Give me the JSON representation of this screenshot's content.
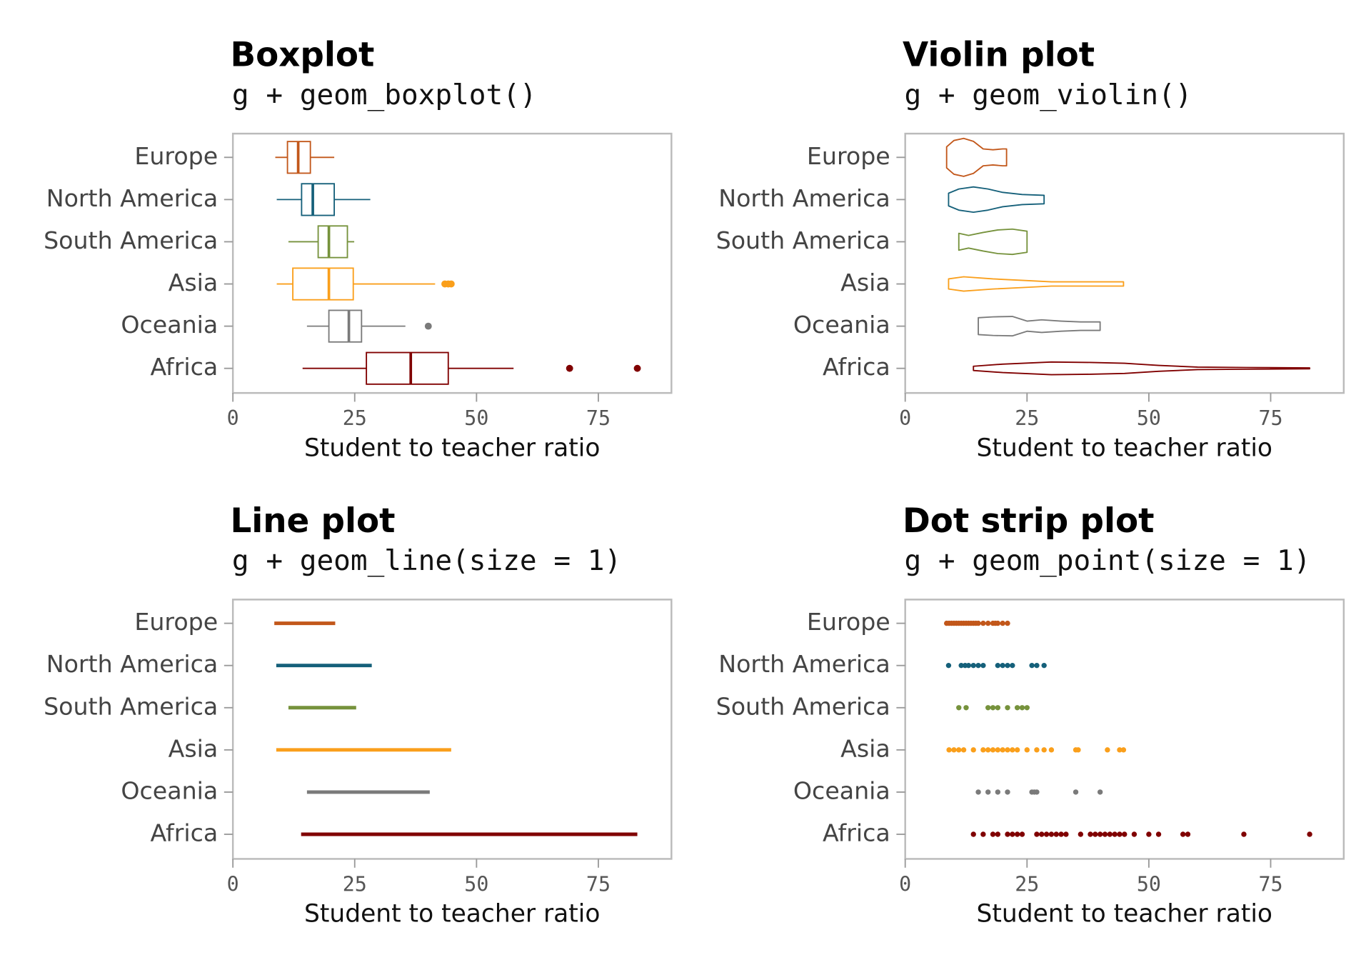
{
  "chart_data": [
    {
      "type": "boxplot",
      "title": "Boxplot",
      "subtitle": "g + geom_boxplot()",
      "xlabel": "Student to teacher ratio",
      "categories": [
        "Europe",
        "North America",
        "South America",
        "Asia",
        "Oceania",
        "Africa"
      ],
      "colors": [
        "#c2571a",
        "#15607a",
        "#76923c",
        "#fa9f1b",
        "#7a7a7a",
        "#800000"
      ],
      "xlim": [
        0,
        90
      ],
      "xticks": [
        0,
        25,
        50,
        75
      ],
      "stats": [
        {
          "min": 8.7,
          "q1": 11.2,
          "median": 13.4,
          "q3": 15.9,
          "max": 20.8,
          "outliers": []
        },
        {
          "min": 9.0,
          "q1": 14.1,
          "median": 16.4,
          "q3": 20.8,
          "max": 28.2,
          "outliers": []
        },
        {
          "min": 11.4,
          "q1": 17.5,
          "median": 19.7,
          "q3": 23.5,
          "max": 24.9,
          "outliers": []
        },
        {
          "min": 9.0,
          "q1": 12.3,
          "median": 19.7,
          "q3": 24.7,
          "max": 41.5,
          "outliers": [
            43.5,
            44.2,
            44.8
          ]
        },
        {
          "min": 15.2,
          "q1": 19.7,
          "median": 23.8,
          "q3": 26.4,
          "max": 35.4,
          "outliers": [
            40.1
          ]
        },
        {
          "min": 14.3,
          "q1": 27.4,
          "median": 36.5,
          "q3": 44.2,
          "max": 57.6,
          "outliers": [
            69.1,
            83.0
          ]
        }
      ]
    },
    {
      "type": "violin",
      "title": "Violin plot",
      "subtitle": "g + geom_violin()",
      "xlabel": "Student to teacher ratio",
      "categories": [
        "Europe",
        "North America",
        "South America",
        "Asia",
        "Oceania",
        "Africa"
      ],
      "colors": [
        "#c2571a",
        "#15607a",
        "#76923c",
        "#fa9f1b",
        "#7a7a7a",
        "#800000"
      ],
      "xlim": [
        0,
        90
      ],
      "xticks": [
        0,
        25,
        50,
        75
      ],
      "densities": [
        {
          "x": [
            8.5,
            10,
            12,
            14,
            16,
            18,
            20,
            20.8
          ],
          "width": [
            0.25,
            0.4,
            0.45,
            0.38,
            0.2,
            0.18,
            0.2,
            0.2
          ]
        },
        {
          "x": [
            8.9,
            11,
            14,
            17,
            20,
            24,
            28.5
          ],
          "width": [
            0.15,
            0.25,
            0.3,
            0.25,
            0.17,
            0.12,
            0.1
          ]
        },
        {
          "x": [
            11,
            13,
            16,
            19,
            22,
            25
          ],
          "width": [
            0.2,
            0.15,
            0.22,
            0.28,
            0.3,
            0.25
          ]
        },
        {
          "x": [
            8.9,
            12,
            18,
            25,
            30,
            38,
            44.8
          ],
          "width": [
            0.12,
            0.17,
            0.12,
            0.08,
            0.05,
            0.05,
            0.05
          ]
        },
        {
          "x": [
            15,
            18,
            22,
            25,
            28,
            32,
            36,
            40
          ],
          "width": [
            0.2,
            0.22,
            0.23,
            0.12,
            0.15,
            0.12,
            0.1,
            0.1
          ]
        },
        {
          "x": [
            14,
            20,
            30,
            38,
            45,
            52,
            60,
            70,
            83
          ],
          "width": [
            0.05,
            0.1,
            0.15,
            0.14,
            0.12,
            0.07,
            0.03,
            0.02,
            0.01
          ]
        }
      ]
    },
    {
      "type": "range",
      "title": "Line plot",
      "subtitle": "g + geom_line(size = 1)",
      "xlabel": "Student to teacher ratio",
      "categories": [
        "Europe",
        "North America",
        "South America",
        "Asia",
        "Oceania",
        "Africa"
      ],
      "colors": [
        "#c2571a",
        "#15607a",
        "#76923c",
        "#fa9f1b",
        "#7a7a7a",
        "#800000"
      ],
      "xlim": [
        0,
        90
      ],
      "xticks": [
        0,
        25,
        50,
        75
      ],
      "ranges": [
        [
          8.5,
          21
        ],
        [
          8.9,
          28.5
        ],
        [
          11.4,
          25.3
        ],
        [
          8.9,
          44.8
        ],
        [
          15.2,
          40.4
        ],
        [
          14,
          83
        ]
      ]
    },
    {
      "type": "strip",
      "title": "Dot strip plot",
      "subtitle": "g + geom_point(size = 1)",
      "xlabel": "Student to teacher ratio",
      "categories": [
        "Europe",
        "North America",
        "South America",
        "Asia",
        "Oceania",
        "Africa"
      ],
      "colors": [
        "#c2571a",
        "#15607a",
        "#76923c",
        "#fa9f1b",
        "#7a7a7a",
        "#800000"
      ],
      "xlim": [
        0,
        90
      ],
      "xticks": [
        0,
        25,
        50,
        75
      ],
      "points": [
        [
          8.5,
          9,
          9.5,
          10,
          10.5,
          11,
          11.5,
          12,
          12.5,
          13,
          13.5,
          14,
          14.5,
          15,
          16,
          17,
          18,
          18.5,
          19,
          20,
          21
        ],
        [
          8.9,
          11.5,
          12.3,
          13,
          14,
          15,
          16,
          19,
          20,
          21,
          22,
          26,
          27,
          28.5
        ],
        [
          11,
          12.5,
          17,
          18,
          19,
          21,
          23,
          24,
          25
        ],
        [
          9,
          10,
          11,
          12,
          14,
          16,
          17,
          18,
          19,
          20,
          21,
          22,
          23,
          25,
          27,
          28.5,
          30,
          35,
          35.5,
          41.5,
          44,
          44.8
        ],
        [
          15,
          17,
          19,
          21,
          26,
          26.5,
          27,
          35,
          40
        ],
        [
          14,
          16,
          18,
          19,
          21,
          22,
          23,
          24,
          27,
          28,
          29,
          30,
          31,
          32,
          33,
          36,
          38,
          39,
          40,
          41,
          42,
          43,
          44,
          45,
          47,
          50,
          52,
          57,
          58,
          69.5,
          83
        ]
      ]
    }
  ]
}
